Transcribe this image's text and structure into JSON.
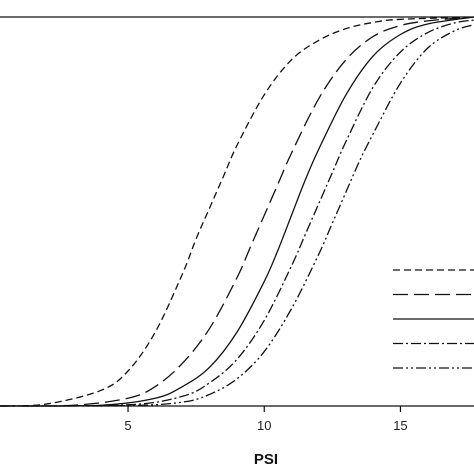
{
  "chart_data": {
    "type": "line",
    "title": "",
    "xlabel": "PSI",
    "ylabel": "",
    "xlim": [
      0.3,
      17.7
    ],
    "ylim": [
      0,
      1
    ],
    "x_ticks": [
      5,
      10,
      15
    ],
    "x_tick_labels": [
      "5",
      "10",
      "15"
    ],
    "grid": false,
    "legend": {
      "placement": "right",
      "entries": [
        "",
        "",
        "",
        "",
        ""
      ]
    },
    "series": [
      {
        "style": "short-dash",
        "x": [
          0.3,
          2,
          4,
          5,
          6,
          7,
          7.5,
          8,
          8.5,
          9,
          10,
          11,
          12,
          13,
          14,
          15,
          17.7
        ],
        "y": [
          0.0,
          0.005,
          0.04,
          0.09,
          0.19,
          0.34,
          0.43,
          0.51,
          0.59,
          0.67,
          0.8,
          0.89,
          0.94,
          0.97,
          0.986,
          0.994,
          1.0
        ]
      },
      {
        "style": "long-dash",
        "x": [
          0.3,
          3,
          5,
          6,
          7,
          8,
          9,
          9.5,
          10,
          10.5,
          11,
          12,
          13,
          14,
          15,
          16,
          17.7
        ],
        "y": [
          0.0,
          0.002,
          0.02,
          0.05,
          0.11,
          0.2,
          0.33,
          0.41,
          0.49,
          0.57,
          0.65,
          0.79,
          0.89,
          0.95,
          0.978,
          0.99,
          1.0
        ]
      },
      {
        "style": "solid",
        "x": [
          0.3,
          4,
          6,
          7,
          8,
          9,
          10,
          10.5,
          11,
          11.5,
          12,
          13,
          14,
          15,
          16,
          17.7
        ],
        "y": [
          0.0,
          0.002,
          0.02,
          0.05,
          0.1,
          0.19,
          0.32,
          0.4,
          0.49,
          0.58,
          0.66,
          0.8,
          0.9,
          0.955,
          0.982,
          1.0
        ]
      },
      {
        "style": "dash-dot",
        "x": [
          0.3,
          5,
          7,
          8,
          9,
          10,
          11,
          11.5,
          12,
          12.5,
          13,
          14,
          15,
          16,
          17,
          17.7
        ],
        "y": [
          0.0,
          0.003,
          0.025,
          0.06,
          0.12,
          0.22,
          0.36,
          0.44,
          0.52,
          0.6,
          0.68,
          0.82,
          0.91,
          0.96,
          0.985,
          0.992
        ]
      },
      {
        "style": "dash-dot-dot",
        "x": [
          0.3,
          5,
          7,
          8,
          9,
          10,
          11,
          12,
          12.5,
          13,
          13.5,
          14,
          15,
          16,
          17,
          17.7
        ],
        "y": [
          0.0,
          0.001,
          0.01,
          0.03,
          0.07,
          0.14,
          0.25,
          0.39,
          0.47,
          0.55,
          0.63,
          0.7,
          0.83,
          0.92,
          0.965,
          0.98
        ]
      }
    ]
  }
}
